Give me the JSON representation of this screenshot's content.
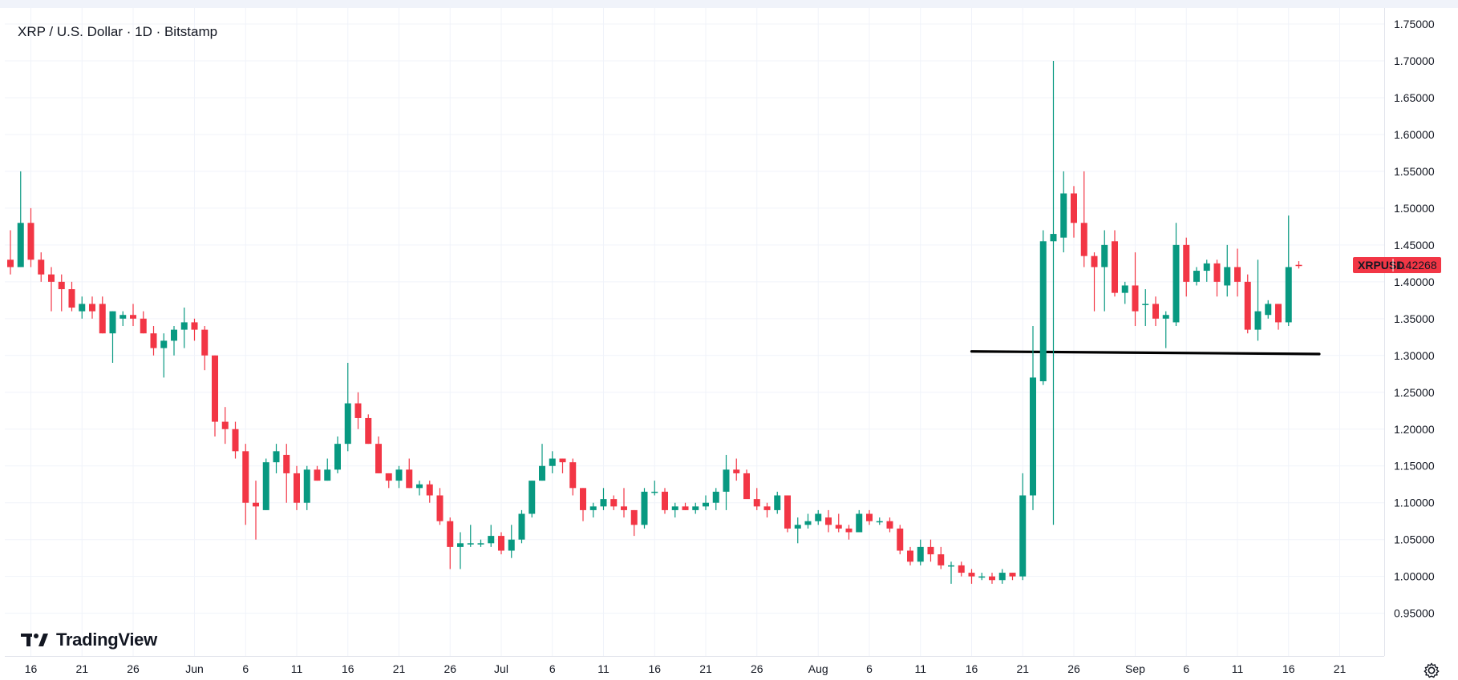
{
  "title": "XRP / U.S. Dollar · 1D · Bitstamp",
  "logo": {
    "text": "TradingView",
    "icon": "tradingview-logo-icon"
  },
  "price_label": {
    "symbol": "XRPUSD",
    "value": "1.42268",
    "color": "#f23645"
  },
  "settings_icon": "gear-icon",
  "colors": {
    "up": "#089981",
    "down": "#f23645",
    "grid": "#f0f3fa",
    "support_line": "#000000"
  },
  "chart_data": {
    "type": "candlestick",
    "title": "XRP / U.S. Dollar · 1D · Bitstamp",
    "ylim": [
      0.925,
      1.775
    ],
    "y_ticks": [
      0.95,
      1.0,
      1.05,
      1.1,
      1.15,
      1.2,
      1.25,
      1.3,
      1.35,
      1.4,
      1.45,
      1.5,
      1.55,
      1.6,
      1.65,
      1.7,
      1.75
    ],
    "y_tick_labels": [
      "0.95000",
      "1.00000",
      "1.05000",
      "1.10000",
      "1.15000",
      "1.20000",
      "1.25000",
      "1.30000",
      "1.35000",
      "1.40000",
      "1.45000",
      "1.50000",
      "1.55000",
      "1.60000",
      "1.65000",
      "1.70000",
      "1.75000"
    ],
    "x_tick_labels": [
      {
        "label": "16",
        "index": 2
      },
      {
        "label": "21",
        "index": 7
      },
      {
        "label": "26",
        "index": 12
      },
      {
        "label": "Jun",
        "index": 18
      },
      {
        "label": "6",
        "index": 23
      },
      {
        "label": "11",
        "index": 28
      },
      {
        "label": "16",
        "index": 33
      },
      {
        "label": "21",
        "index": 38
      },
      {
        "label": "26",
        "index": 43
      },
      {
        "label": "Jul",
        "index": 48
      },
      {
        "label": "6",
        "index": 53
      },
      {
        "label": "11",
        "index": 58
      },
      {
        "label": "16",
        "index": 63
      },
      {
        "label": "21",
        "index": 68
      },
      {
        "label": "26",
        "index": 73
      },
      {
        "label": "Aug",
        "index": 79
      },
      {
        "label": "6",
        "index": 84
      },
      {
        "label": "11",
        "index": 89
      },
      {
        "label": "16",
        "index": 94
      },
      {
        "label": "21",
        "index": 99
      },
      {
        "label": "26",
        "index": 104
      },
      {
        "label": "Sep",
        "index": 110
      },
      {
        "label": "6",
        "index": 115
      },
      {
        "label": "11",
        "index": 120
      },
      {
        "label": "16",
        "index": 125
      },
      {
        "label": "21",
        "index": 130
      }
    ],
    "candles": [
      [
        1.43,
        1.47,
        1.41,
        1.42
      ],
      [
        1.42,
        1.55,
        1.42,
        1.48
      ],
      [
        1.48,
        1.5,
        1.42,
        1.43
      ],
      [
        1.43,
        1.44,
        1.4,
        1.41
      ],
      [
        1.41,
        1.42,
        1.36,
        1.4
      ],
      [
        1.4,
        1.41,
        1.36,
        1.39
      ],
      [
        1.39,
        1.4,
        1.36,
        1.365
      ],
      [
        1.36,
        1.38,
        1.35,
        1.37
      ],
      [
        1.37,
        1.38,
        1.35,
        1.36
      ],
      [
        1.37,
        1.38,
        1.33,
        1.33
      ],
      [
        1.33,
        1.36,
        1.29,
        1.36
      ],
      [
        1.35,
        1.36,
        1.34,
        1.355
      ],
      [
        1.355,
        1.37,
        1.34,
        1.35
      ],
      [
        1.35,
        1.36,
        1.33,
        1.33
      ],
      [
        1.33,
        1.34,
        1.3,
        1.31
      ],
      [
        1.31,
        1.33,
        1.27,
        1.32
      ],
      [
        1.32,
        1.34,
        1.3,
        1.335
      ],
      [
        1.335,
        1.365,
        1.31,
        1.345
      ],
      [
        1.345,
        1.35,
        1.32,
        1.335
      ],
      [
        1.335,
        1.34,
        1.28,
        1.3
      ],
      [
        1.3,
        1.3,
        1.19,
        1.21
      ],
      [
        1.21,
        1.23,
        1.18,
        1.2
      ],
      [
        1.2,
        1.21,
        1.16,
        1.17
      ],
      [
        1.17,
        1.18,
        1.07,
        1.1
      ],
      [
        1.1,
        1.13,
        1.05,
        1.095
      ],
      [
        1.09,
        1.16,
        1.09,
        1.155
      ],
      [
        1.155,
        1.18,
        1.14,
        1.17
      ],
      [
        1.165,
        1.18,
        1.1,
        1.14
      ],
      [
        1.14,
        1.15,
        1.09,
        1.1
      ],
      [
        1.1,
        1.15,
        1.09,
        1.145
      ],
      [
        1.145,
        1.15,
        1.13,
        1.13
      ],
      [
        1.13,
        1.16,
        1.13,
        1.145
      ],
      [
        1.145,
        1.19,
        1.14,
        1.18
      ],
      [
        1.18,
        1.29,
        1.17,
        1.235
      ],
      [
        1.235,
        1.25,
        1.2,
        1.215
      ],
      [
        1.215,
        1.22,
        1.18,
        1.18
      ],
      [
        1.18,
        1.19,
        1.14,
        1.14
      ],
      [
        1.14,
        1.14,
        1.12,
        1.13
      ],
      [
        1.13,
        1.15,
        1.12,
        1.145
      ],
      [
        1.145,
        1.16,
        1.12,
        1.12
      ],
      [
        1.12,
        1.13,
        1.11,
        1.125
      ],
      [
        1.125,
        1.13,
        1.1,
        1.11
      ],
      [
        1.11,
        1.12,
        1.07,
        1.075
      ],
      [
        1.075,
        1.08,
        1.01,
        1.04
      ],
      [
        1.04,
        1.06,
        1.01,
        1.045
      ],
      [
        1.045,
        1.07,
        1.04,
        1.045
      ],
      [
        1.045,
        1.05,
        1.04,
        1.045
      ],
      [
        1.045,
        1.07,
        1.04,
        1.055
      ],
      [
        1.055,
        1.06,
        1.03,
        1.035
      ],
      [
        1.035,
        1.07,
        1.025,
        1.05
      ],
      [
        1.05,
        1.09,
        1.045,
        1.085
      ],
      [
        1.085,
        1.13,
        1.08,
        1.13
      ],
      [
        1.13,
        1.18,
        1.13,
        1.15
      ],
      [
        1.15,
        1.17,
        1.14,
        1.16
      ],
      [
        1.16,
        1.16,
        1.14,
        1.155
      ],
      [
        1.155,
        1.16,
        1.11,
        1.12
      ],
      [
        1.12,
        1.12,
        1.075,
        1.09
      ],
      [
        1.09,
        1.1,
        1.08,
        1.095
      ],
      [
        1.095,
        1.12,
        1.09,
        1.105
      ],
      [
        1.105,
        1.11,
        1.09,
        1.095
      ],
      [
        1.095,
        1.12,
        1.08,
        1.09
      ],
      [
        1.09,
        1.09,
        1.055,
        1.07
      ],
      [
        1.07,
        1.12,
        1.065,
        1.115
      ],
      [
        1.115,
        1.13,
        1.11,
        1.115
      ],
      [
        1.115,
        1.12,
        1.085,
        1.09
      ],
      [
        1.09,
        1.1,
        1.08,
        1.095
      ],
      [
        1.095,
        1.1,
        1.09,
        1.09
      ],
      [
        1.09,
        1.1,
        1.085,
        1.095
      ],
      [
        1.095,
        1.11,
        1.09,
        1.1
      ],
      [
        1.1,
        1.12,
        1.09,
        1.115
      ],
      [
        1.115,
        1.165,
        1.09,
        1.145
      ],
      [
        1.145,
        1.16,
        1.13,
        1.14
      ],
      [
        1.14,
        1.145,
        1.11,
        1.105
      ],
      [
        1.105,
        1.12,
        1.09,
        1.095
      ],
      [
        1.095,
        1.1,
        1.08,
        1.09
      ],
      [
        1.09,
        1.115,
        1.085,
        1.11
      ],
      [
        1.11,
        1.11,
        1.06,
        1.065
      ],
      [
        1.065,
        1.08,
        1.045,
        1.07
      ],
      [
        1.07,
        1.085,
        1.065,
        1.075
      ],
      [
        1.075,
        1.09,
        1.07,
        1.085
      ],
      [
        1.08,
        1.09,
        1.06,
        1.07
      ],
      [
        1.07,
        1.085,
        1.06,
        1.065
      ],
      [
        1.065,
        1.07,
        1.05,
        1.06
      ],
      [
        1.06,
        1.09,
        1.06,
        1.085
      ],
      [
        1.085,
        1.09,
        1.07,
        1.075
      ],
      [
        1.075,
        1.08,
        1.07,
        1.075
      ],
      [
        1.075,
        1.08,
        1.06,
        1.065
      ],
      [
        1.065,
        1.07,
        1.03,
        1.035
      ],
      [
        1.035,
        1.04,
        1.015,
        1.02
      ],
      [
        1.02,
        1.05,
        1.015,
        1.04
      ],
      [
        1.04,
        1.05,
        1.02,
        1.03
      ],
      [
        1.03,
        1.04,
        1.01,
        1.015
      ],
      [
        1.015,
        1.02,
        0.99,
        1.015
      ],
      [
        1.015,
        1.02,
        1.0,
        1.005
      ],
      [
        1.005,
        1.01,
        0.99,
        1.0
      ],
      [
        1.0,
        1.005,
        0.995,
        1.0
      ],
      [
        1.0,
        1.005,
        0.99,
        0.995
      ],
      [
        0.995,
        1.01,
        0.99,
        1.005
      ],
      [
        1.005,
        1.005,
        0.995,
        1.0
      ],
      [
        1.0,
        1.14,
        0.995,
        1.11
      ],
      [
        1.11,
        1.34,
        1.09,
        1.27
      ],
      [
        1.265,
        1.47,
        1.26,
        1.455
      ],
      [
        1.455,
        1.7,
        1.07,
        1.465
      ],
      [
        1.46,
        1.55,
        1.44,
        1.52
      ],
      [
        1.52,
        1.53,
        1.46,
        1.48
      ],
      [
        1.48,
        1.55,
        1.42,
        1.435
      ],
      [
        1.435,
        1.44,
        1.36,
        1.42
      ],
      [
        1.42,
        1.47,
        1.36,
        1.45
      ],
      [
        1.455,
        1.47,
        1.38,
        1.385
      ],
      [
        1.385,
        1.4,
        1.37,
        1.395
      ],
      [
        1.395,
        1.44,
        1.34,
        1.36
      ],
      [
        1.37,
        1.39,
        1.34,
        1.37
      ],
      [
        1.37,
        1.38,
        1.34,
        1.35
      ],
      [
        1.35,
        1.36,
        1.31,
        1.355
      ],
      [
        1.345,
        1.48,
        1.34,
        1.45
      ],
      [
        1.45,
        1.46,
        1.38,
        1.4
      ],
      [
        1.4,
        1.42,
        1.395,
        1.415
      ],
      [
        1.415,
        1.43,
        1.4,
        1.425
      ],
      [
        1.425,
        1.43,
        1.38,
        1.4
      ],
      [
        1.395,
        1.45,
        1.38,
        1.42
      ],
      [
        1.42,
        1.445,
        1.38,
        1.4
      ],
      [
        1.4,
        1.41,
        1.33,
        1.335
      ],
      [
        1.335,
        1.43,
        1.32,
        1.36
      ],
      [
        1.355,
        1.375,
        1.35,
        1.37
      ],
      [
        1.37,
        1.37,
        1.335,
        1.345
      ],
      [
        1.345,
        1.49,
        1.34,
        1.42
      ],
      [
        1.423,
        1.428,
        1.418,
        1.4227
      ]
    ],
    "annotations": [
      {
        "type": "horizontal_segment",
        "from_index": 94,
        "to_index": 128,
        "y_start": 1.3055,
        "y_end": 1.302,
        "color": "#000000"
      }
    ],
    "last_price": 1.42268,
    "grid": true,
    "y_axis_position": "right"
  }
}
